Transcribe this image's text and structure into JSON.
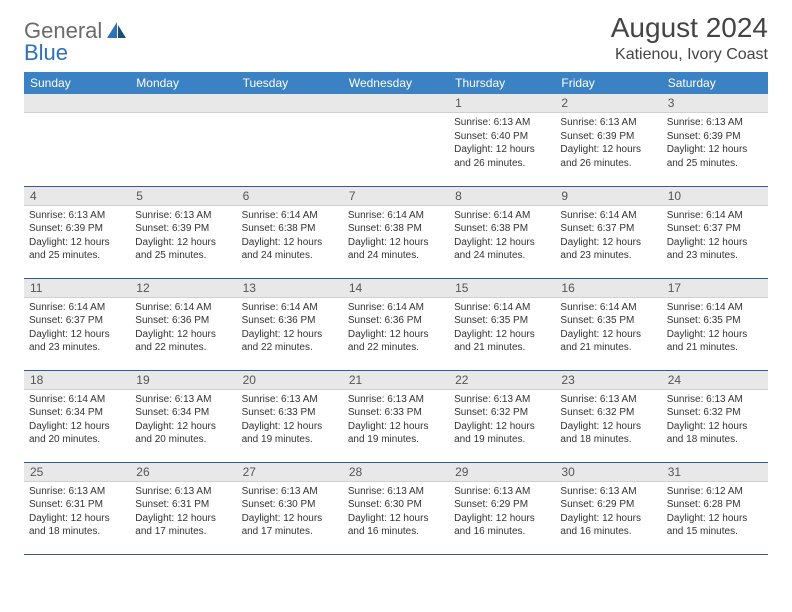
{
  "logo": {
    "general": "General",
    "blue": "Blue"
  },
  "title": "August 2024",
  "location": "Katienou, Ivory Coast",
  "colors": {
    "header_bg": "#3b82c4",
    "header_text": "#ffffff",
    "daynum_bg": "#e8e8e8",
    "row_border": "#2d5f8f",
    "logo_gray": "#6b6b6b",
    "logo_blue": "#2d72b8"
  },
  "weekdays": [
    "Sunday",
    "Monday",
    "Tuesday",
    "Wednesday",
    "Thursday",
    "Friday",
    "Saturday"
  ],
  "weeks": [
    [
      null,
      null,
      null,
      null,
      {
        "n": "1",
        "sr": "Sunrise: 6:13 AM",
        "ss": "Sunset: 6:40 PM",
        "dl": "Daylight: 12 hours and 26 minutes."
      },
      {
        "n": "2",
        "sr": "Sunrise: 6:13 AM",
        "ss": "Sunset: 6:39 PM",
        "dl": "Daylight: 12 hours and 26 minutes."
      },
      {
        "n": "3",
        "sr": "Sunrise: 6:13 AM",
        "ss": "Sunset: 6:39 PM",
        "dl": "Daylight: 12 hours and 25 minutes."
      }
    ],
    [
      {
        "n": "4",
        "sr": "Sunrise: 6:13 AM",
        "ss": "Sunset: 6:39 PM",
        "dl": "Daylight: 12 hours and 25 minutes."
      },
      {
        "n": "5",
        "sr": "Sunrise: 6:13 AM",
        "ss": "Sunset: 6:39 PM",
        "dl": "Daylight: 12 hours and 25 minutes."
      },
      {
        "n": "6",
        "sr": "Sunrise: 6:14 AM",
        "ss": "Sunset: 6:38 PM",
        "dl": "Daylight: 12 hours and 24 minutes."
      },
      {
        "n": "7",
        "sr": "Sunrise: 6:14 AM",
        "ss": "Sunset: 6:38 PM",
        "dl": "Daylight: 12 hours and 24 minutes."
      },
      {
        "n": "8",
        "sr": "Sunrise: 6:14 AM",
        "ss": "Sunset: 6:38 PM",
        "dl": "Daylight: 12 hours and 24 minutes."
      },
      {
        "n": "9",
        "sr": "Sunrise: 6:14 AM",
        "ss": "Sunset: 6:37 PM",
        "dl": "Daylight: 12 hours and 23 minutes."
      },
      {
        "n": "10",
        "sr": "Sunrise: 6:14 AM",
        "ss": "Sunset: 6:37 PM",
        "dl": "Daylight: 12 hours and 23 minutes."
      }
    ],
    [
      {
        "n": "11",
        "sr": "Sunrise: 6:14 AM",
        "ss": "Sunset: 6:37 PM",
        "dl": "Daylight: 12 hours and 23 minutes."
      },
      {
        "n": "12",
        "sr": "Sunrise: 6:14 AM",
        "ss": "Sunset: 6:36 PM",
        "dl": "Daylight: 12 hours and 22 minutes."
      },
      {
        "n": "13",
        "sr": "Sunrise: 6:14 AM",
        "ss": "Sunset: 6:36 PM",
        "dl": "Daylight: 12 hours and 22 minutes."
      },
      {
        "n": "14",
        "sr": "Sunrise: 6:14 AM",
        "ss": "Sunset: 6:36 PM",
        "dl": "Daylight: 12 hours and 22 minutes."
      },
      {
        "n": "15",
        "sr": "Sunrise: 6:14 AM",
        "ss": "Sunset: 6:35 PM",
        "dl": "Daylight: 12 hours and 21 minutes."
      },
      {
        "n": "16",
        "sr": "Sunrise: 6:14 AM",
        "ss": "Sunset: 6:35 PM",
        "dl": "Daylight: 12 hours and 21 minutes."
      },
      {
        "n": "17",
        "sr": "Sunrise: 6:14 AM",
        "ss": "Sunset: 6:35 PM",
        "dl": "Daylight: 12 hours and 21 minutes."
      }
    ],
    [
      {
        "n": "18",
        "sr": "Sunrise: 6:14 AM",
        "ss": "Sunset: 6:34 PM",
        "dl": "Daylight: 12 hours and 20 minutes."
      },
      {
        "n": "19",
        "sr": "Sunrise: 6:13 AM",
        "ss": "Sunset: 6:34 PM",
        "dl": "Daylight: 12 hours and 20 minutes."
      },
      {
        "n": "20",
        "sr": "Sunrise: 6:13 AM",
        "ss": "Sunset: 6:33 PM",
        "dl": "Daylight: 12 hours and 19 minutes."
      },
      {
        "n": "21",
        "sr": "Sunrise: 6:13 AM",
        "ss": "Sunset: 6:33 PM",
        "dl": "Daylight: 12 hours and 19 minutes."
      },
      {
        "n": "22",
        "sr": "Sunrise: 6:13 AM",
        "ss": "Sunset: 6:32 PM",
        "dl": "Daylight: 12 hours and 19 minutes."
      },
      {
        "n": "23",
        "sr": "Sunrise: 6:13 AM",
        "ss": "Sunset: 6:32 PM",
        "dl": "Daylight: 12 hours and 18 minutes."
      },
      {
        "n": "24",
        "sr": "Sunrise: 6:13 AM",
        "ss": "Sunset: 6:32 PM",
        "dl": "Daylight: 12 hours and 18 minutes."
      }
    ],
    [
      {
        "n": "25",
        "sr": "Sunrise: 6:13 AM",
        "ss": "Sunset: 6:31 PM",
        "dl": "Daylight: 12 hours and 18 minutes."
      },
      {
        "n": "26",
        "sr": "Sunrise: 6:13 AM",
        "ss": "Sunset: 6:31 PM",
        "dl": "Daylight: 12 hours and 17 minutes."
      },
      {
        "n": "27",
        "sr": "Sunrise: 6:13 AM",
        "ss": "Sunset: 6:30 PM",
        "dl": "Daylight: 12 hours and 17 minutes."
      },
      {
        "n": "28",
        "sr": "Sunrise: 6:13 AM",
        "ss": "Sunset: 6:30 PM",
        "dl": "Daylight: 12 hours and 16 minutes."
      },
      {
        "n": "29",
        "sr": "Sunrise: 6:13 AM",
        "ss": "Sunset: 6:29 PM",
        "dl": "Daylight: 12 hours and 16 minutes."
      },
      {
        "n": "30",
        "sr": "Sunrise: 6:13 AM",
        "ss": "Sunset: 6:29 PM",
        "dl": "Daylight: 12 hours and 16 minutes."
      },
      {
        "n": "31",
        "sr": "Sunrise: 6:12 AM",
        "ss": "Sunset: 6:28 PM",
        "dl": "Daylight: 12 hours and 15 minutes."
      }
    ]
  ]
}
